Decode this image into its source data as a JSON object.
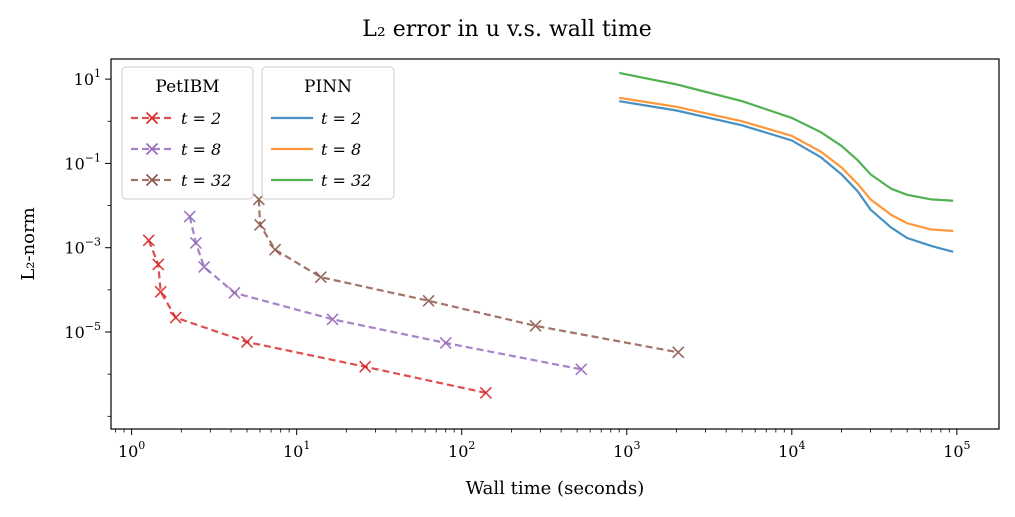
{
  "chart_data": {
    "type": "line",
    "title": "L₂ error in u v.s. wall time",
    "xlabel": "Wall time (seconds)",
    "ylabel": "L₂-norm",
    "xscale": "log",
    "yscale": "log",
    "xlim": [
      0.75,
      180000
    ],
    "ylim": [
      5e-08,
      30
    ],
    "xticks": [
      {
        "value": 1,
        "base": "10",
        "exp": "0"
      },
      {
        "value": 10,
        "base": "10",
        "exp": "1"
      },
      {
        "value": 100,
        "base": "10",
        "exp": "2"
      },
      {
        "value": 1000,
        "base": "10",
        "exp": "3"
      },
      {
        "value": 10000,
        "base": "10",
        "exp": "4"
      },
      {
        "value": 100000,
        "base": "10",
        "exp": "5"
      }
    ],
    "yticks": [
      {
        "value": 10,
        "base": "10",
        "exp": "1"
      },
      {
        "value": 0.1,
        "base": "10",
        "exp": "−1"
      },
      {
        "value": 0.001,
        "base": "10",
        "exp": "−3"
      },
      {
        "value": 1e-05,
        "base": "10",
        "exp": "−5"
      }
    ],
    "grid": false,
    "legends": [
      {
        "title": "PetIBM",
        "placement": "top-left"
      },
      {
        "title": "PINN",
        "placement": "top-left"
      }
    ],
    "series": [
      {
        "group": "PetIBM",
        "name": "t = 2",
        "color": "#d62728",
        "style": "dashed",
        "marker": "x",
        "points": [
          [
            1.27,
            0.0015
          ],
          [
            1.45,
            0.0004
          ],
          [
            1.5,
            9e-05
          ],
          [
            1.85,
            2.2e-05
          ],
          [
            5.0,
            5.8e-06
          ],
          [
            26,
            1.5e-06
          ],
          [
            140,
            3.6e-07
          ]
        ]
      },
      {
        "group": "PetIBM",
        "name": "t = 8",
        "color": "#9467bd",
        "style": "dashed",
        "marker": "x",
        "points": [
          [
            2.25,
            0.0055
          ],
          [
            2.45,
            0.0013
          ],
          [
            2.75,
            0.00035
          ],
          [
            4.2,
            8.5e-05
          ],
          [
            16.5,
            2e-05
          ],
          [
            80,
            5.5e-06
          ],
          [
            530,
            1.3e-06
          ]
        ]
      },
      {
        "group": "PetIBM",
        "name": "t = 32",
        "color": "#8c564b",
        "style": "dashed",
        "marker": "x",
        "points": [
          [
            5.9,
            0.014
          ],
          [
            6.0,
            0.0035
          ],
          [
            7.4,
            0.0009
          ],
          [
            14,
            0.0002
          ],
          [
            63,
            5.5e-05
          ],
          [
            280,
            1.4e-05
          ],
          [
            2050,
            3.3e-06
          ]
        ]
      },
      {
        "group": "PINN",
        "name": "t = 2",
        "color": "#1f77b4",
        "style": "solid",
        "marker": "",
        "points": [
          [
            900,
            3.0
          ],
          [
            2000,
            1.8
          ],
          [
            5000,
            0.8
          ],
          [
            10000,
            0.35
          ],
          [
            15000,
            0.14
          ],
          [
            20000,
            0.055
          ],
          [
            25000,
            0.022
          ],
          [
            30000,
            0.008
          ],
          [
            40000,
            0.003
          ],
          [
            50000,
            0.0017
          ],
          [
            70000,
            0.0011
          ],
          [
            95000,
            0.0008
          ]
        ]
      },
      {
        "group": "PINN",
        "name": "t = 8",
        "color": "#ff7f0e",
        "style": "solid",
        "marker": "",
        "points": [
          [
            900,
            3.6
          ],
          [
            2000,
            2.2
          ],
          [
            5000,
            1.0
          ],
          [
            10000,
            0.45
          ],
          [
            15000,
            0.19
          ],
          [
            20000,
            0.08
          ],
          [
            25000,
            0.033
          ],
          [
            30000,
            0.014
          ],
          [
            40000,
            0.006
          ],
          [
            50000,
            0.0038
          ],
          [
            70000,
            0.0027
          ],
          [
            95000,
            0.0025
          ]
        ]
      },
      {
        "group": "PINN",
        "name": "t = 32",
        "color": "#2ca02c",
        "style": "solid",
        "marker": "",
        "points": [
          [
            900,
            14
          ],
          [
            2000,
            7.5
          ],
          [
            5000,
            3.0
          ],
          [
            10000,
            1.2
          ],
          [
            15000,
            0.55
          ],
          [
            20000,
            0.26
          ],
          [
            25000,
            0.12
          ],
          [
            30000,
            0.055
          ],
          [
            40000,
            0.025
          ],
          [
            50000,
            0.018
          ],
          [
            70000,
            0.014
          ],
          [
            95000,
            0.013
          ]
        ]
      }
    ]
  }
}
